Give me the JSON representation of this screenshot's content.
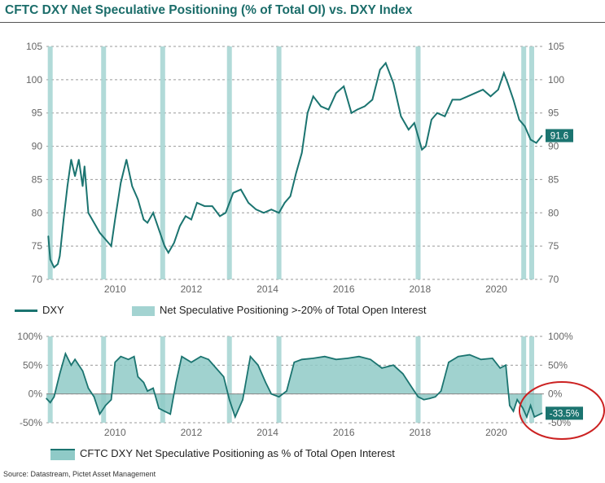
{
  "title": "CFTC DXY Net Speculative Positioning (% of Total OI) vs. DXY Index",
  "source": "Source: Datastream, Pictet Asset Management",
  "colors": {
    "line": "#1b7470",
    "band": "#a3d3d1",
    "area": "#8fcac7",
    "label_bg": "#1b7470",
    "highlight": "#cc2222"
  },
  "legend_top": {
    "line_label": "DXY",
    "band_label": "Net Speculative Positioning >-20% of Total Open Interest"
  },
  "legend_bottom": {
    "area_label": "CFTC DXY Net Speculative Positioning as % of Total Open Interest"
  },
  "chart_data": [
    {
      "type": "line",
      "series": [
        {
          "name": "DXY",
          "x": [
            2008.25,
            2008.3,
            2008.4,
            2008.5,
            2008.55,
            2008.65,
            2008.75,
            2008.85,
            2008.95,
            2009.05,
            2009.15,
            2009.2,
            2009.3,
            2009.45,
            2009.6,
            2009.75,
            2009.9,
            2010.0,
            2010.15,
            2010.3,
            2010.45,
            2010.6,
            2010.75,
            2010.85,
            2011.0,
            2011.15,
            2011.3,
            2011.4,
            2011.55,
            2011.7,
            2011.85,
            2012.0,
            2012.15,
            2012.35,
            2012.55,
            2012.75,
            2012.9,
            2013.1,
            2013.3,
            2013.5,
            2013.7,
            2013.9,
            2014.1,
            2014.3,
            2014.45,
            2014.6,
            2014.75,
            2014.9,
            2015.05,
            2015.2,
            2015.4,
            2015.6,
            2015.8,
            2016.0,
            2016.2,
            2016.35,
            2016.55,
            2016.75,
            2016.95,
            2017.1,
            2017.3,
            2017.5,
            2017.7,
            2017.85,
            2018.05,
            2018.15,
            2018.3,
            2018.45,
            2018.65,
            2018.85,
            2019.05,
            2019.25,
            2019.45,
            2019.65,
            2019.85,
            2020.05,
            2020.2,
            2020.3,
            2020.45,
            2020.6,
            2020.75,
            2020.9,
            2021.05,
            2021.2
          ],
          "values": [
            76.5,
            73.0,
            71.8,
            72.3,
            73.5,
            79.0,
            84.0,
            88.0,
            85.5,
            88.0,
            84.0,
            87.0,
            80.0,
            78.5,
            77.0,
            76.0,
            75.0,
            79.0,
            84.5,
            88.0,
            84.0,
            82.0,
            79.0,
            78.5,
            80.0,
            77.5,
            75.0,
            74.0,
            75.5,
            78.0,
            79.5,
            79.0,
            81.5,
            81.0,
            81.0,
            79.5,
            80.0,
            83.0,
            83.5,
            81.5,
            80.5,
            80.0,
            80.5,
            80.0,
            81.5,
            82.5,
            86.0,
            89.0,
            95.0,
            97.5,
            96.0,
            95.5,
            98.0,
            99.0,
            95.0,
            95.5,
            96.0,
            97.0,
            101.5,
            102.5,
            99.5,
            94.5,
            92.5,
            93.5,
            89.5,
            90.0,
            94.0,
            95.0,
            94.5,
            97.0,
            97.0,
            97.5,
            98.0,
            98.5,
            97.5,
            98.5,
            101.0,
            99.5,
            97.0,
            94.0,
            93.0,
            91.0,
            90.5,
            91.6
          ]
        }
      ],
      "bands_x": [
        2008.3,
        2009.7,
        2011.25,
        2013.0,
        2014.3,
        2017.95,
        2020.72,
        2020.93
      ],
      "band_label": "Net Speculative Positioning >-20% of Total Open Interest",
      "ylim": [
        70,
        105
      ],
      "xlim": [
        2008.2,
        2021.25
      ],
      "y_ticks": [
        70,
        75,
        80,
        85,
        90,
        95,
        100,
        105
      ],
      "x_ticks": [
        2010,
        2012,
        2014,
        2016,
        2018,
        2020
      ],
      "last_value_label": "91.6",
      "grid": true
    },
    {
      "type": "area",
      "series": [
        {
          "name": "CFTC DXY Net Speculative Positioning as % of Total Open Interest",
          "x": [
            2008.2,
            2008.3,
            2008.4,
            2008.55,
            2008.7,
            2008.85,
            2008.95,
            2009.15,
            2009.3,
            2009.45,
            2009.6,
            2009.75,
            2009.9,
            2010.0,
            2010.15,
            2010.35,
            2010.5,
            2010.6,
            2010.75,
            2010.85,
            2011.0,
            2011.15,
            2011.3,
            2011.45,
            2011.6,
            2011.75,
            2012.0,
            2012.25,
            2012.45,
            2012.65,
            2012.85,
            2013.0,
            2013.15,
            2013.35,
            2013.55,
            2013.75,
            2013.95,
            2014.1,
            2014.3,
            2014.5,
            2014.7,
            2014.9,
            2015.2,
            2015.5,
            2015.8,
            2016.1,
            2016.4,
            2016.7,
            2017.0,
            2017.3,
            2017.55,
            2017.75,
            2017.95,
            2018.1,
            2018.25,
            2018.4,
            2018.55,
            2018.75,
            2019.0,
            2019.3,
            2019.6,
            2019.9,
            2020.1,
            2020.25,
            2020.35,
            2020.45,
            2020.55,
            2020.7,
            2020.8,
            2020.9,
            2021.0,
            2021.2
          ],
          "values": [
            -8,
            -15,
            -5,
            35,
            70,
            50,
            60,
            40,
            10,
            -5,
            -35,
            -20,
            -10,
            55,
            65,
            60,
            65,
            30,
            20,
            5,
            10,
            -25,
            -30,
            -35,
            20,
            65,
            55,
            65,
            60,
            45,
            30,
            -10,
            -40,
            -10,
            65,
            50,
            20,
            0,
            -5,
            5,
            55,
            60,
            62,
            65,
            60,
            62,
            65,
            60,
            45,
            50,
            35,
            15,
            -5,
            -10,
            -8,
            -5,
            5,
            55,
            65,
            68,
            60,
            62,
            45,
            50,
            -20,
            -30,
            -10,
            -25,
            -40,
            -20,
            -40,
            -33.5
          ]
        }
      ],
      "bands_x": [
        2008.3,
        2009.7,
        2011.25,
        2013.0,
        2014.3,
        2017.95,
        2020.72,
        2020.93
      ],
      "ylim": [
        -50,
        100
      ],
      "xlim": [
        2008.2,
        2021.25
      ],
      "y_ticks": [
        100,
        50,
        0,
        -50
      ],
      "y_tick_labels": [
        "100%",
        "50%",
        "0%",
        "-50%"
      ],
      "x_ticks": [
        2010,
        2012,
        2014,
        2016,
        2018,
        2020
      ],
      "last_value_label": "-33.5%",
      "grid": true
    }
  ]
}
